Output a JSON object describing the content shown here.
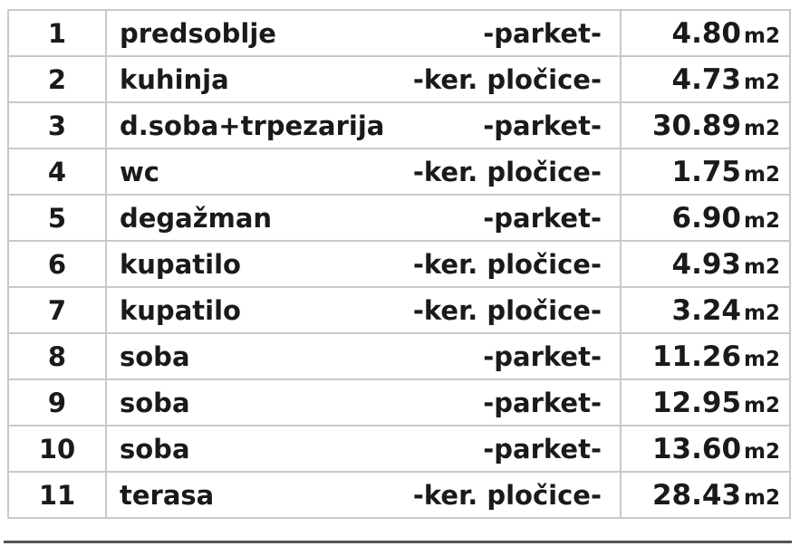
{
  "rows": [
    {
      "num": "1",
      "name": "predsoblje",
      "floor": "-parket-",
      "area": "4.80",
      "unit": "m2"
    },
    {
      "num": "2",
      "name": "kuhinja",
      "floor": "-ker. pločice-",
      "area": "4.73",
      "unit": "m2"
    },
    {
      "num": "3",
      "name": "d.soba+trpezarija",
      "floor": "-parket-",
      "area": "30.89",
      "unit": "m2"
    },
    {
      "num": "4",
      "name": "wc",
      "floor": "-ker. pločice-",
      "area": "1.75",
      "unit": "m2"
    },
    {
      "num": "5",
      "name": "degažman",
      "floor": "-parket-",
      "area": "6.90",
      "unit": "m2"
    },
    {
      "num": "6",
      "name": "kupatilo",
      "floor": "-ker. pločice-",
      "area": "4.93",
      "unit": "m2"
    },
    {
      "num": "7",
      "name": "kupatilo",
      "floor": "-ker. pločice-",
      "area": "3.24",
      "unit": "m2"
    },
    {
      "num": "8",
      "name": "soba",
      "floor": "-parket-",
      "area": "11.26",
      "unit": "m2"
    },
    {
      "num": "9",
      "name": "soba",
      "floor": "-parket-",
      "area": "12.95",
      "unit": "m2"
    },
    {
      "num": "10",
      "name": "soba",
      "floor": "-parket-",
      "area": "13.60",
      "unit": "m2"
    },
    {
      "num": "11",
      "name": "terasa",
      "floor": "-ker. pločice-",
      "area": "28.43",
      "unit": "m2"
    }
  ]
}
